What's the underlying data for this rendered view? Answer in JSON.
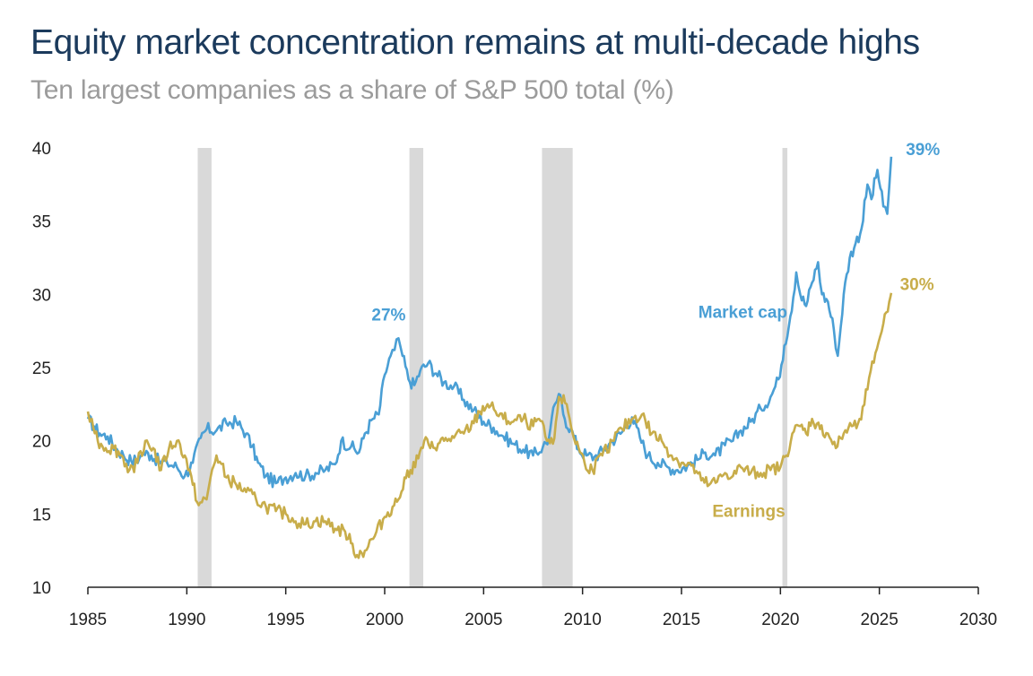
{
  "chart_data": {
    "type": "line",
    "title": "Equity market concentration remains at multi-decade highs",
    "subtitle": "Ten largest companies as a share of S&P 500 total (%)",
    "xlabel": "",
    "ylabel": "",
    "xlim": [
      1985,
      2030
    ],
    "ylim": [
      10,
      40
    ],
    "x_ticks": [
      1985,
      1990,
      1995,
      2000,
      2005,
      2010,
      2015,
      2020,
      2025,
      2030
    ],
    "x_tick_labels": [
      "1985",
      "1990",
      "1995",
      "2000",
      "2005",
      "2010",
      "2015",
      "2020",
      "2025",
      "2030"
    ],
    "y_ticks": [
      10,
      15,
      20,
      25,
      30,
      35,
      40
    ],
    "y_tick_labels": [
      "10",
      "15",
      "20",
      "25",
      "30",
      "35",
      "40"
    ],
    "grid": false,
    "recession_periods": [
      [
        1990.55,
        1991.25
      ],
      [
        2001.25,
        2001.95
      ],
      [
        2007.95,
        2009.5
      ],
      [
        2020.1,
        2020.35
      ]
    ],
    "series": [
      {
        "name": "Market cap",
        "color": "#4a9fd5",
        "x": [
          1985.0,
          1985.3,
          1985.6,
          1986.0,
          1986.4,
          1986.8,
          1987.2,
          1987.6,
          1987.8,
          1988.2,
          1988.6,
          1989.0,
          1989.5,
          1989.9,
          1990.3,
          1990.7,
          1991.0,
          1991.5,
          1992.0,
          1992.5,
          1993.0,
          1993.3,
          1993.6,
          1994.0,
          1994.5,
          1995.0,
          1995.5,
          1996.0,
          1996.5,
          1997.0,
          1997.5,
          1997.8,
          1998.3,
          1998.7,
          1999.0,
          1999.4,
          1999.7,
          2000.0,
          2000.3,
          2000.5,
          2000.7,
          2000.9,
          2001.2,
          2001.5,
          2001.8,
          2002.2,
          2002.6,
          2003.0,
          2003.5,
          2004.0,
          2004.5,
          2005.0,
          2005.5,
          2006.0,
          2006.5,
          2007.0,
          2007.5,
          2008.0,
          2008.3,
          2008.6,
          2008.8,
          2009.1,
          2009.4,
          2009.8,
          2010.2,
          2010.6,
          2011.0,
          2011.5,
          2012.0,
          2012.5,
          2012.9,
          2013.3,
          2013.8,
          2014.3,
          2014.8,
          2015.3,
          2015.8,
          2016.2,
          2016.7,
          2017.2,
          2017.6,
          2018.0,
          2018.5,
          2019.0,
          2019.5,
          2019.9,
          2020.2,
          2020.5,
          2020.8,
          2021.0,
          2021.3,
          2021.6,
          2021.9,
          2022.1,
          2022.4,
          2022.7,
          2022.9,
          2023.2,
          2023.5,
          2023.8,
          2024.1,
          2024.4,
          2024.6,
          2024.9,
          2025.2,
          2025.4,
          2025.6
        ],
        "values": [
          21.5,
          21.0,
          20.5,
          20.3,
          19.5,
          19.0,
          18.6,
          18.8,
          19.2,
          19.0,
          18.6,
          18.5,
          18.2,
          17.6,
          18.5,
          20.2,
          20.8,
          20.7,
          21.2,
          21.3,
          20.5,
          19.6,
          18.5,
          17.6,
          17.1,
          17.5,
          17.8,
          17.6,
          17.8,
          18.0,
          18.4,
          20.0,
          19.6,
          19.2,
          20.5,
          21.5,
          21.8,
          24.5,
          25.8,
          26.2,
          27.0,
          25.8,
          24.2,
          23.8,
          24.8,
          25.3,
          24.6,
          24.0,
          23.7,
          22.8,
          22.1,
          21.3,
          20.9,
          20.3,
          19.8,
          19.4,
          19.0,
          19.6,
          20.2,
          22.5,
          23.2,
          21.5,
          20.8,
          19.4,
          19.0,
          18.9,
          19.3,
          20.0,
          20.6,
          21.6,
          20.2,
          19.0,
          18.5,
          18.2,
          18.0,
          18.3,
          18.7,
          19.2,
          19.0,
          19.7,
          20.0,
          20.7,
          21.3,
          22.2,
          23.0,
          24.2,
          26.5,
          28.5,
          31.5,
          30.0,
          29.2,
          30.8,
          32.2,
          30.0,
          29.5,
          27.6,
          25.8,
          30.0,
          32.5,
          33.5,
          34.5,
          37.5,
          36.5,
          38.5,
          36.0,
          35.5,
          39.4
        ]
      },
      {
        "name": "Earnings",
        "color": "#c8ad4a",
        "x": [
          1985.0,
          1985.2,
          1985.5,
          1985.9,
          1986.3,
          1986.7,
          1987.1,
          1987.5,
          1987.9,
          1988.3,
          1988.7,
          1989.1,
          1989.5,
          1989.9,
          1990.3,
          1990.6,
          1991.0,
          1991.2,
          1991.5,
          1992.0,
          1992.5,
          1993.0,
          1993.5,
          1994.0,
          1994.5,
          1995.0,
          1995.5,
          1996.0,
          1996.5,
          1997.0,
          1997.5,
          1998.0,
          1998.3,
          1998.6,
          1999.0,
          1999.5,
          2000.0,
          2000.4,
          2000.7,
          2001.0,
          2001.3,
          2001.7,
          2002.0,
          2002.3,
          2002.7,
          2003.0,
          2003.5,
          2004.0,
          2004.5,
          2004.8,
          2005.2,
          2005.6,
          2006.0,
          2006.5,
          2007.0,
          2007.5,
          2007.8,
          2008.2,
          2008.5,
          2008.8,
          2009.2,
          2009.5,
          2009.8,
          2010.1,
          2010.5,
          2011.0,
          2011.5,
          2012.0,
          2012.5,
          2013.0,
          2013.5,
          2014.0,
          2014.5,
          2015.0,
          2015.5,
          2016.0,
          2016.4,
          2016.8,
          2017.2,
          2017.6,
          2018.0,
          2018.5,
          2019.0,
          2019.5,
          2020.0,
          2020.3,
          2020.6,
          2021.0,
          2021.3,
          2021.6,
          2022.0,
          2022.4,
          2022.8,
          2023.2,
          2023.6,
          2024.0,
          2024.4,
          2024.8,
          2025.2,
          2025.5,
          2025.6
        ],
        "values": [
          22.0,
          21.5,
          20.0,
          19.5,
          19.5,
          19.0,
          18.0,
          18.5,
          20.0,
          19.5,
          18.0,
          19.5,
          20.0,
          19.0,
          17.0,
          15.6,
          16.0,
          17.5,
          19.0,
          17.5,
          17.0,
          16.5,
          16.0,
          15.5,
          15.2,
          15.0,
          14.5,
          14.3,
          14.5,
          14.5,
          14.0,
          13.8,
          13.0,
          12.2,
          12.5,
          13.5,
          14.8,
          15.5,
          16.0,
          17.5,
          18.0,
          18.8,
          20.0,
          19.5,
          19.8,
          20.0,
          20.2,
          20.5,
          21.2,
          22.0,
          22.5,
          22.0,
          21.5,
          21.3,
          21.5,
          21.0,
          21.5,
          20.0,
          19.8,
          23.0,
          22.5,
          20.5,
          19.5,
          18.5,
          18.0,
          19.0,
          20.0,
          20.8,
          21.5,
          21.8,
          20.5,
          20.0,
          19.0,
          18.5,
          18.3,
          17.3,
          17.0,
          17.2,
          17.8,
          17.6,
          18.2,
          17.8,
          17.8,
          18.0,
          18.2,
          19.0,
          20.5,
          21.0,
          20.5,
          21.5,
          20.8,
          20.5,
          19.5,
          20.5,
          21.0,
          21.5,
          23.5,
          26.0,
          28.0,
          29.5,
          30.1
        ]
      }
    ],
    "annotations": [
      {
        "text": "27%",
        "x": 2000.2,
        "y": 28.2,
        "color": "#4a9fd5"
      },
      {
        "text": "Market cap",
        "x": 2018.1,
        "y": 28.4,
        "color": "#4a9fd5"
      },
      {
        "text": "39%",
        "x": 2027.2,
        "y": 39.5,
        "color": "#4a9fd5"
      },
      {
        "text": "30%",
        "x": 2026.9,
        "y": 30.3,
        "color": "#c8ad4a"
      },
      {
        "text": "Earnings",
        "x": 2018.4,
        "y": 14.8,
        "color": "#c8ad4a"
      }
    ]
  }
}
